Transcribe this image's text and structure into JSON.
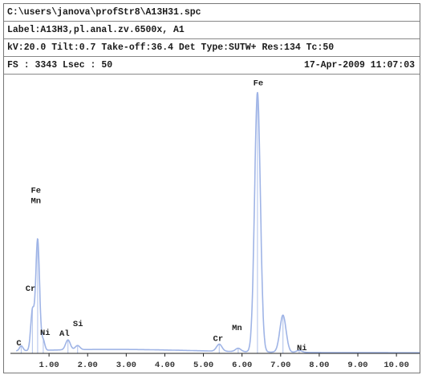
{
  "header": {
    "file_path": "C:\\users\\janova\\profStr8\\A13H31.spc",
    "label": "Label:A13H3,pl.anal.zv.6500x,  A1",
    "params": "kV:20.0 Tilt:0.7 Take-off:36.4  Det Type:SUTW+ Res:134 Tc:50",
    "fs_lsec": "FS : 3343  Lsec : 50",
    "datetime": "17-Apr-2009 11:07:03"
  },
  "chart_data": {
    "type": "line",
    "title": "",
    "xlabel": "",
    "ylabel": "",
    "xlim": [
      0,
      10.6
    ],
    "ylim": [
      0,
      3343
    ],
    "x_ticks": [
      "1.00",
      "2.00",
      "3.00",
      "4.00",
      "5.00",
      "6.00",
      "7.00",
      "8.00",
      "9.00",
      "10.00"
    ],
    "x_tick_values": [
      1,
      2,
      3,
      4,
      5,
      6,
      7,
      8,
      9,
      10
    ],
    "colors": {
      "spectrum": "#9fb4e6",
      "peak": "#e59aa8",
      "axis": "#222222"
    },
    "background_counts": 40,
    "peaks": [
      {
        "element": "C",
        "energy": 0.28,
        "counts": 60,
        "width": 0.045
      },
      {
        "element": "Cr",
        "energy": 0.57,
        "counts": 480,
        "width": 0.045
      },
      {
        "element": "Fe",
        "energy": 0.705,
        "counts": 1350,
        "width": 0.05
      },
      {
        "element": "Ni",
        "energy": 0.85,
        "counts": 120,
        "width": 0.04
      },
      {
        "element": "Al",
        "energy": 1.49,
        "counts": 120,
        "width": 0.06
      },
      {
        "element": "Si",
        "energy": 1.74,
        "counts": 50,
        "width": 0.06
      },
      {
        "element": "Cr",
        "energy": 5.41,
        "counts": 85,
        "width": 0.07
      },
      {
        "element": "Mn",
        "energy": 5.9,
        "counts": 40,
        "width": 0.07
      },
      {
        "element": "Fe",
        "energy": 6.4,
        "counts": 3150,
        "width": 0.075
      },
      {
        "element": "Fe",
        "energy": 7.06,
        "counts": 450,
        "width": 0.08
      },
      {
        "element": "Ni",
        "energy": 7.48,
        "counts": 25,
        "width": 0.07
      }
    ],
    "annotations": [
      {
        "text": "Fe",
        "x": 0.66,
        "y": 1950
      },
      {
        "text": "Mn",
        "x": 0.66,
        "y": 1820
      },
      {
        "text": "Cr",
        "x": 0.52,
        "y": 760
      },
      {
        "text": "Ni",
        "x": 0.9,
        "y": 225
      },
      {
        "text": "Si",
        "x": 1.75,
        "y": 330
      },
      {
        "text": "Al",
        "x": 1.4,
        "y": 215
      },
      {
        "text": "C",
        "x": 0.22,
        "y": 95
      },
      {
        "text": "Cr",
        "x": 5.38,
        "y": 150
      },
      {
        "text": "Mn",
        "x": 5.87,
        "y": 280
      },
      {
        "text": "Fe",
        "x": 6.42,
        "y": 3250
      },
      {
        "text": "Ni",
        "x": 7.55,
        "y": 40
      }
    ]
  }
}
